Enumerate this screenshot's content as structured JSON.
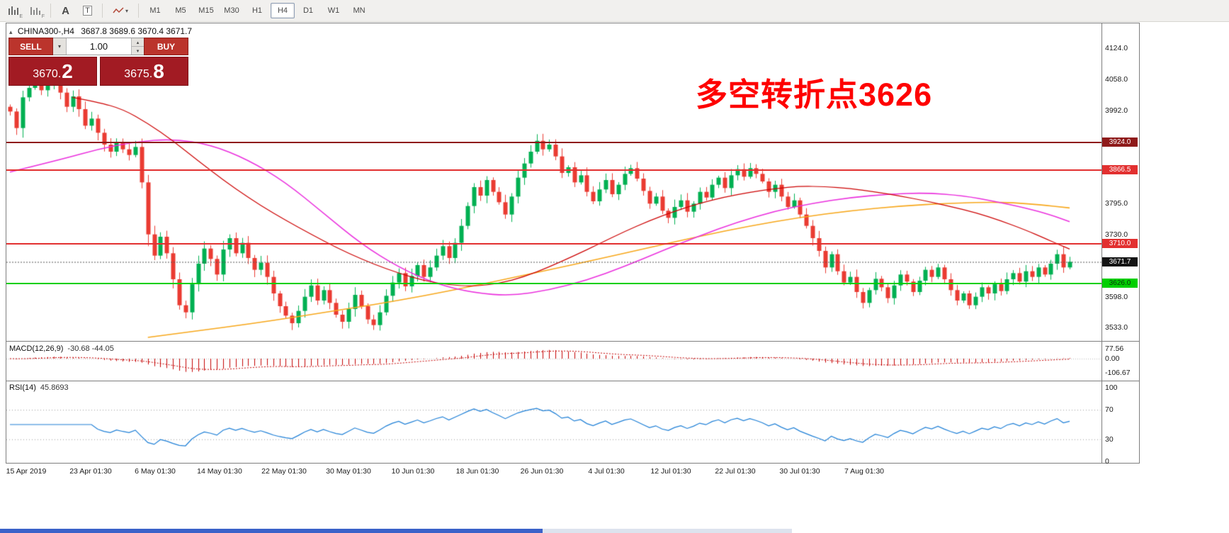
{
  "toolbar": {
    "icons": [
      {
        "name": "chart-window-icon",
        "badge": "E"
      },
      {
        "name": "chart-template-icon",
        "badge": "F"
      },
      {
        "name": "text-label-icon",
        "glyph": "A"
      },
      {
        "name": "text-box-icon",
        "glyph": "T"
      },
      {
        "name": "draw-tools-icon",
        "glyph": "▾"
      }
    ],
    "timeframes": [
      "M1",
      "M5",
      "M15",
      "M30",
      "H1",
      "H4",
      "D1",
      "W1",
      "MN"
    ],
    "active_timeframe": "H4"
  },
  "chart_header": {
    "collapse_icon": "▴",
    "symbol_period": "CHINA300-,H4",
    "ohlc": "3687.8 3689.6 3670.4 3671.7"
  },
  "trade_panel": {
    "sell_label": "SELL",
    "buy_label": "BUY",
    "volume": "1.00",
    "dropdown_glyph": "▾",
    "spinner_up": "▴",
    "spinner_down": "▾",
    "bid_main": "3670.",
    "bid_big": "2",
    "ask_main": "3675.",
    "ask_big": "8"
  },
  "annotation": {
    "text": "多空转折点3626",
    "color": "#fe0000"
  },
  "price_axis": {
    "plain": [
      {
        "label": "4124.0",
        "price": 4124.0
      },
      {
        "label": "4058.0",
        "price": 4058.0
      },
      {
        "label": "3992.0",
        "price": 3992.0
      },
      {
        "label": "3795.0",
        "price": 3795.0
      },
      {
        "label": "3730.0",
        "price": 3730.0
      },
      {
        "label": "3598.0",
        "price": 3598.0
      },
      {
        "label": "3533.0",
        "price": 3533.0
      }
    ],
    "badges": [
      {
        "label": "3924.0",
        "price": 3924.0,
        "bg": "#8e1a1a",
        "fg": "#ffffff"
      },
      {
        "label": "3866.5",
        "price": 3866.5,
        "bg": "#e23030",
        "fg": "#ffffff"
      },
      {
        "label": "3710.0",
        "price": 3710.0,
        "bg": "#e23030",
        "fg": "#ffffff"
      },
      {
        "label": "3671.7",
        "price": 3671.7,
        "bg": "#141414",
        "fg": "#ffffff"
      },
      {
        "label": "3626.0",
        "price": 3626.0,
        "bg": "#00cf00",
        "fg": "#07330c"
      }
    ]
  },
  "indicator_macd": {
    "label": "MACD(12,26,9)",
    "values": "-30.68 -44.05",
    "axis": [
      {
        "label": "77.56",
        "v": 77.56
      },
      {
        "label": "0.00",
        "v": 0
      },
      {
        "label": "-106.67",
        "v": -106.67
      }
    ]
  },
  "indicator_rsi": {
    "label": "RSI(14)",
    "value": "45.8693",
    "axis": [
      {
        "label": "100",
        "v": 100
      },
      {
        "label": "70",
        "v": 70
      },
      {
        "label": "30",
        "v": 30
      },
      {
        "label": "0",
        "v": 0
      }
    ],
    "levels": [
      70,
      30
    ]
  },
  "chart_data": {
    "type": "candlestick",
    "symbol": "CHINA300-",
    "period": "H4",
    "ylim": [
      3500,
      4160
    ],
    "up_color": "#00b052",
    "down_color": "#ea3b32",
    "x_labels": [
      "15 Apr 2019",
      "23 Apr 01:30",
      "6 May 01:30",
      "14 May 01:30",
      "22 May 01:30",
      "30 May 01:30",
      "10 Jun 01:30",
      "18 Jun 01:30",
      "26 Jun 01:30",
      "4 Jul 01:30",
      "12 Jul 01:30",
      "22 Jul 01:30",
      "30 Jul 01:30",
      "7 Aug 01:30"
    ],
    "price_lines": [
      {
        "price": 3924.0,
        "color": "#8e1a1a",
        "style": "solid",
        "role": "resistance"
      },
      {
        "price": 3866.5,
        "color": "#e23030",
        "style": "solid",
        "role": "resistance"
      },
      {
        "price": 3710.0,
        "color": "#e23030",
        "style": "solid",
        "role": "resistance"
      },
      {
        "price": 3626.0,
        "color": "#00cf00",
        "style": "solid",
        "role": "support"
      },
      {
        "price": 3671.7,
        "color": "#555555",
        "style": "dotted",
        "role": "last-price"
      }
    ],
    "closes": [
      3990,
      3955,
      4020,
      4040,
      4052,
      4035,
      4048,
      4060,
      4030,
      4000,
      4022,
      3995,
      3960,
      3975,
      3945,
      3920,
      3905,
      3925,
      3910,
      3898,
      3915,
      3840,
      3730,
      3685,
      3725,
      3690,
      3635,
      3580,
      3565,
      3625,
      3668,
      3700,
      3678,
      3645,
      3698,
      3722,
      3690,
      3712,
      3680,
      3655,
      3670,
      3640,
      3605,
      3578,
      3558,
      3542,
      3568,
      3598,
      3622,
      3590,
      3612,
      3585,
      3560,
      3545,
      3572,
      3602,
      3578,
      3550,
      3538,
      3565,
      3600,
      3628,
      3648,
      3620,
      3642,
      3665,
      3640,
      3660,
      3685,
      3705,
      3680,
      3712,
      3748,
      3790,
      3830,
      3812,
      3845,
      3820,
      3798,
      3772,
      3810,
      3850,
      3880,
      3905,
      3928,
      3910,
      3920,
      3895,
      3860,
      3872,
      3840,
      3855,
      3820,
      3800,
      3825,
      3845,
      3815,
      3835,
      3858,
      3870,
      3848,
      3822,
      3795,
      3810,
      3780,
      3765,
      3788,
      3802,
      3778,
      3795,
      3820,
      3808,
      3835,
      3850,
      3828,
      3855,
      3868,
      3852,
      3870,
      3858,
      3842,
      3820,
      3835,
      3810,
      3788,
      3802,
      3772,
      3748,
      3722,
      3695,
      3660,
      3688,
      3652,
      3628,
      3640,
      3608,
      3585,
      3612,
      3636,
      3618,
      3595,
      3622,
      3645,
      3630,
      3608,
      3632,
      3655,
      3640,
      3660,
      3635,
      3612,
      3590,
      3605,
      3580,
      3598,
      3618,
      3605,
      3625,
      3610,
      3635,
      3648,
      3630,
      3652,
      3640,
      3660,
      3645,
      3668,
      3688,
      3660,
      3672
    ],
    "ma_red": [
      [
        10,
        4020
      ],
      [
        14,
        4010
      ],
      [
        18,
        3995
      ],
      [
        22,
        3965
      ],
      [
        26,
        3928
      ],
      [
        30,
        3886
      ],
      [
        34,
        3845
      ],
      [
        38,
        3808
      ],
      [
        42,
        3775
      ],
      [
        46,
        3745
      ],
      [
        50,
        3716
      ],
      [
        54,
        3690
      ],
      [
        58,
        3667
      ],
      [
        62,
        3648
      ],
      [
        66,
        3632
      ],
      [
        70,
        3623
      ],
      [
        74,
        3620
      ],
      [
        78,
        3626
      ],
      [
        82,
        3640
      ],
      [
        86,
        3661
      ],
      [
        90,
        3685
      ],
      [
        94,
        3710
      ],
      [
        98,
        3736
      ],
      [
        102,
        3759
      ],
      [
        106,
        3779
      ],
      [
        110,
        3796
      ],
      [
        114,
        3809
      ],
      [
        118,
        3819
      ],
      [
        122,
        3827
      ],
      [
        126,
        3832
      ],
      [
        130,
        3831
      ],
      [
        134,
        3827
      ],
      [
        138,
        3820
      ],
      [
        142,
        3811
      ],
      [
        146,
        3801
      ],
      [
        150,
        3789
      ],
      [
        154,
        3776
      ],
      [
        158,
        3759
      ],
      [
        162,
        3739
      ],
      [
        165,
        3722
      ],
      [
        167,
        3710
      ],
      [
        169,
        3699
      ]
    ],
    "ma_magenta": [
      [
        0,
        3862
      ],
      [
        8,
        3888
      ],
      [
        14,
        3910
      ],
      [
        20,
        3926
      ],
      [
        26,
        3932
      ],
      [
        32,
        3920
      ],
      [
        38,
        3888
      ],
      [
        44,
        3840
      ],
      [
        50,
        3775
      ],
      [
        56,
        3710
      ],
      [
        62,
        3660
      ],
      [
        68,
        3625
      ],
      [
        74,
        3606
      ],
      [
        80,
        3600
      ],
      [
        86,
        3612
      ],
      [
        92,
        3633
      ],
      [
        98,
        3662
      ],
      [
        104,
        3695
      ],
      [
        110,
        3727
      ],
      [
        116,
        3756
      ],
      [
        122,
        3779
      ],
      [
        128,
        3796
      ],
      [
        134,
        3808
      ],
      [
        140,
        3815
      ],
      [
        146,
        3818
      ],
      [
        152,
        3812
      ],
      [
        157,
        3800
      ],
      [
        162,
        3786
      ],
      [
        166,
        3771
      ],
      [
        169,
        3757
      ]
    ],
    "ma_orange": [
      [
        22,
        3512
      ],
      [
        30,
        3526
      ],
      [
        38,
        3540
      ],
      [
        46,
        3556
      ],
      [
        54,
        3573
      ],
      [
        62,
        3590
      ],
      [
        70,
        3610
      ],
      [
        78,
        3632
      ],
      [
        86,
        3655
      ],
      [
        94,
        3678
      ],
      [
        102,
        3702
      ],
      [
        110,
        3726
      ],
      [
        118,
        3748
      ],
      [
        126,
        3766
      ],
      [
        134,
        3780
      ],
      [
        142,
        3790
      ],
      [
        150,
        3796
      ],
      [
        156,
        3798
      ],
      [
        160,
        3797
      ],
      [
        164,
        3793
      ],
      [
        169,
        3786
      ]
    ],
    "ma_colors": {
      "fast": "#cc0000",
      "mid": "#ea30dd",
      "slow": "#f7a71b"
    }
  }
}
